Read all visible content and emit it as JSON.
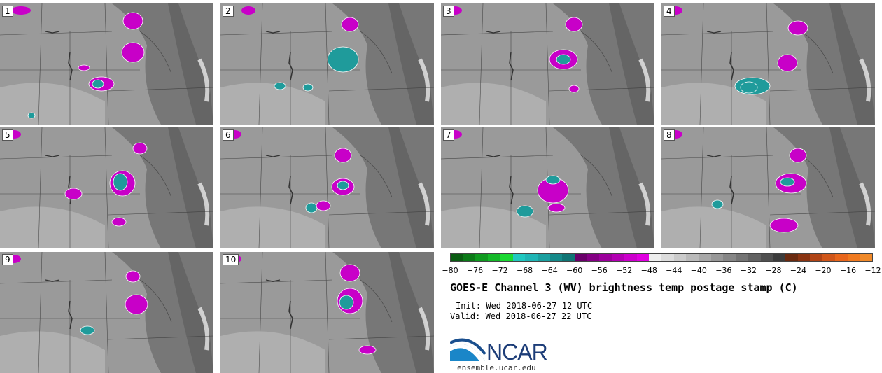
{
  "panels": [
    {
      "number": "1"
    },
    {
      "number": "2"
    },
    {
      "number": "3"
    },
    {
      "number": "4"
    },
    {
      "number": "5"
    },
    {
      "number": "6"
    },
    {
      "number": "7"
    },
    {
      "number": "8"
    },
    {
      "number": "9"
    },
    {
      "number": "10"
    }
  ],
  "colorbar": {
    "ticks": [
      "−80",
      "−76",
      "−72",
      "−68",
      "−64",
      "−60",
      "−56",
      "−52",
      "−48",
      "−44",
      "−40",
      "−36",
      "−32",
      "−28",
      "−24",
      "−20",
      "−16",
      "−12"
    ],
    "colors": [
      "#0a5c12",
      "#0b7a17",
      "#0f9a1f",
      "#14b828",
      "#1ad832",
      "#20c8c0",
      "#1fb5b5",
      "#1a9f9f",
      "#158a8a",
      "#107575",
      "#6a006a",
      "#840084",
      "#9c009c",
      "#b300b3",
      "#cc00cc",
      "#e000e0",
      "#eeeeee",
      "#dcdcdc",
      "#cbcbcb",
      "#bababa",
      "#a8a8a8",
      "#979797",
      "#868686",
      "#747474",
      "#626262",
      "#505050",
      "#3c3c3c",
      "#6a2a10",
      "#8a3412",
      "#b04416",
      "#d0561a",
      "#e8661c",
      "#f07a20",
      "#f08a2a"
    ]
  },
  "title": "GOES-E Channel 3 (WV) brightness temp postage stamp (C)",
  "init": "Init: Wed 2018-06-27 12 UTC",
  "valid": "Valid: Wed 2018-06-27 22 UTC",
  "logo": {
    "text": "NCAR",
    "url": "ensemble.ucar.edu"
  },
  "map_colors": {
    "base": "#9a9a9a",
    "dark": "#6e6e6e",
    "light": "#c4c4c4",
    "magenta": "#c800c8",
    "teal": "#1f9b9b"
  }
}
